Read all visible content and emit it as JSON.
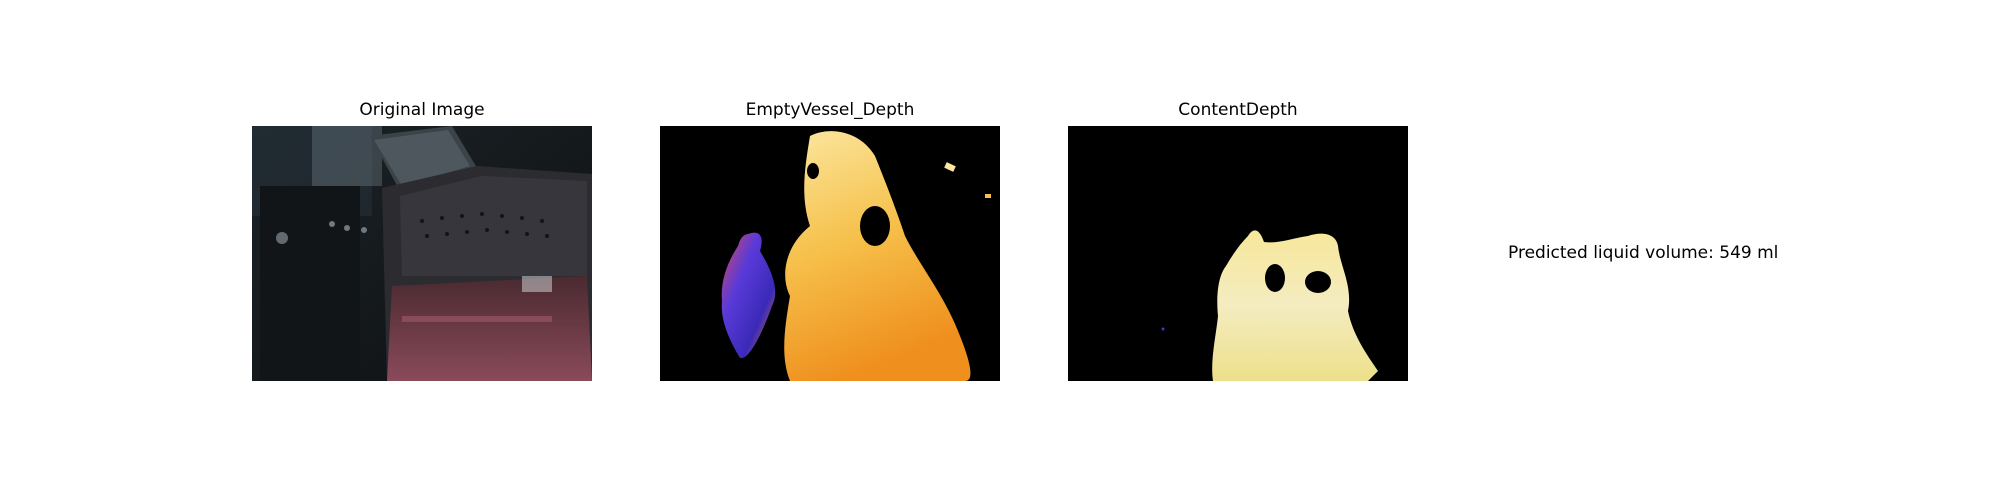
{
  "panels": [
    {
      "title": "Original Image",
      "kind": "photo"
    },
    {
      "title": "EmptyVessel_Depth",
      "kind": "depth-map"
    },
    {
      "title": "ContentDepth",
      "kind": "depth-map"
    }
  ],
  "result": {
    "text": "Predicted liquid volume: 549 ml"
  },
  "colors": {
    "background": "#ffffff",
    "map_background": "#000000",
    "depth_near": "#3b2bd6",
    "depth_mid": "#f08a1c",
    "depth_far": "#fbe9a8"
  }
}
